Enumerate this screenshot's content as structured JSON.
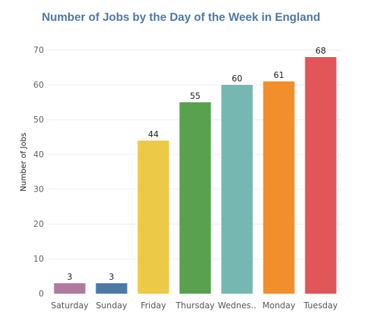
{
  "chart_data": {
    "type": "bar",
    "title": "Number of Jobs by the Day of the Week in England",
    "xlabel": "",
    "ylabel": "Number of Jobs",
    "categories": [
      "Saturday",
      "Sunday",
      "Friday",
      "Thursday",
      "Wednes..",
      "Monday",
      "Tuesday"
    ],
    "values": [
      3,
      3,
      44,
      55,
      60,
      61,
      68
    ],
    "data_labels": [
      "3",
      "3",
      "44",
      "55",
      "60",
      "61",
      "68"
    ],
    "colors": [
      "#b07aa1",
      "#4e79a7",
      "#edc948",
      "#59a14f",
      "#76b7b2",
      "#f28e2b",
      "#e15759"
    ],
    "ylim": [
      0,
      70
    ],
    "yticks": [
      0,
      10,
      20,
      30,
      40,
      50,
      60,
      70
    ],
    "grid": true,
    "legend": "none"
  }
}
